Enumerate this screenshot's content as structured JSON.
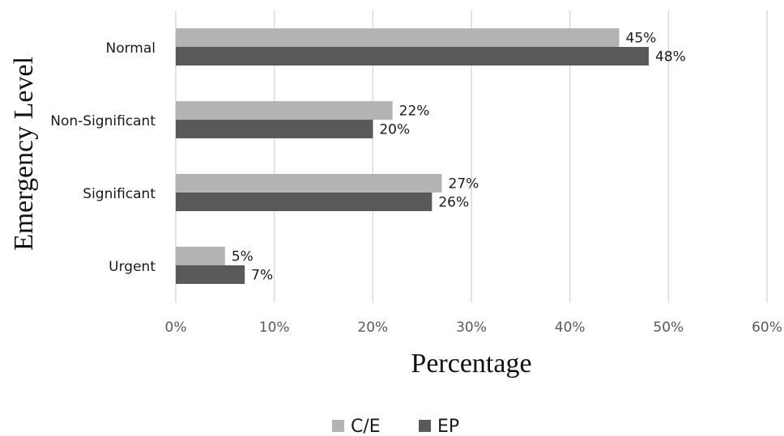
{
  "chart_data": {
    "type": "bar",
    "orientation": "horizontal",
    "categories": [
      "Normal",
      "Non-Significant",
      "Significant",
      "Urgent"
    ],
    "series": [
      {
        "name": "C/E",
        "values": [
          45,
          22,
          27,
          5
        ],
        "labels": [
          "45%",
          "22%",
          "27%",
          "5%"
        ],
        "color": "#b3b3b3"
      },
      {
        "name": "EP",
        "values": [
          48,
          20,
          26,
          7
        ],
        "labels": [
          "48%",
          "20%",
          "26%",
          "7%"
        ],
        "color": "#595959"
      }
    ],
    "xlabel": "Percentage",
    "ylabel": "Emergency Level",
    "xlim": [
      0,
      60
    ],
    "x_ticks": [
      "0%",
      "10%",
      "20%",
      "30%",
      "40%",
      "50%",
      "60%"
    ],
    "grid": "vertical",
    "legend_position": "bottom",
    "grid_color": "#d9d9d9"
  }
}
